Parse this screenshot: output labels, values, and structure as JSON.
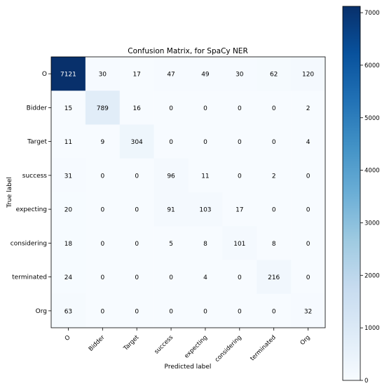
{
  "chart_data": {
    "type": "heatmap",
    "title": "Confusion Matrix, for SpaCy NER",
    "xlabel": "Predicted label",
    "ylabel": "True label",
    "x_categories": [
      "O",
      "Bidder",
      "Target",
      "success",
      "expecting",
      "considering",
      "terminated",
      "Org"
    ],
    "y_categories": [
      "O",
      "Bidder",
      "Target",
      "success",
      "expecting",
      "considering",
      "terminated",
      "Org"
    ],
    "values": [
      [
        7121,
        30,
        17,
        47,
        49,
        30,
        62,
        120
      ],
      [
        15,
        789,
        16,
        0,
        0,
        0,
        0,
        2
      ],
      [
        11,
        9,
        304,
        0,
        0,
        0,
        0,
        4
      ],
      [
        31,
        0,
        0,
        96,
        11,
        0,
        2,
        0
      ],
      [
        20,
        0,
        0,
        91,
        103,
        17,
        0,
        0
      ],
      [
        18,
        0,
        0,
        5,
        8,
        101,
        8,
        0
      ],
      [
        24,
        0,
        0,
        0,
        4,
        0,
        216,
        0
      ],
      [
        63,
        0,
        0,
        0,
        0,
        0,
        0,
        32
      ]
    ],
    "colorbar": {
      "colormap": "Blues",
      "range": [
        0,
        7121
      ],
      "ticks": [
        0,
        1000,
        2000,
        3000,
        4000,
        5000,
        6000,
        7000
      ]
    },
    "colors": {
      "low": "#f7fbff",
      "high": "#08306b"
    }
  }
}
